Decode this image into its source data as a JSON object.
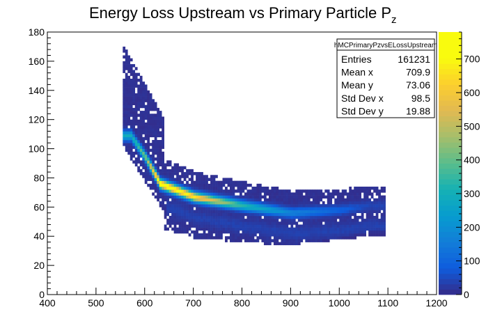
{
  "chart_data": {
    "type": "heatmap",
    "title_main": "Energy Loss Upstream vs Primary Particle P",
    "title_sub": "z",
    "xlabel": "",
    "ylabel": "",
    "xlim": [
      400,
      1200
    ],
    "ylim": [
      0,
      180
    ],
    "x_ticks": [
      400,
      500,
      600,
      700,
      800,
      900,
      1000,
      1100,
      1200
    ],
    "y_ticks": [
      0,
      20,
      40,
      60,
      80,
      100,
      120,
      140,
      160,
      180
    ],
    "z_ticks": [
      0,
      100,
      200,
      300,
      400,
      500,
      600,
      700
    ],
    "zlim": [
      0,
      780
    ],
    "grid": false,
    "colorscale": "kBird",
    "stats": {
      "name": "hMCPrimaryPzvsELossUpstream",
      "rows": [
        {
          "label": "Entries",
          "value": "161231"
        },
        {
          "label": "Mean x",
          "value": "709.9"
        },
        {
          "label": "Mean y",
          "value": "73.06"
        },
        {
          "label": "Std Dev x",
          "value": "98.5"
        },
        {
          "label": "Std Dev y",
          "value": "19.88"
        }
      ]
    },
    "band": {
      "description_points_x": [
        570,
        600,
        630,
        700,
        800,
        900,
        1000,
        1060
      ],
      "description_points_y": [
        108,
        93,
        75,
        66,
        60,
        55,
        57,
        60
      ],
      "peak_values": [
        280,
        420,
        780,
        650,
        320,
        160,
        80,
        30
      ]
    }
  }
}
